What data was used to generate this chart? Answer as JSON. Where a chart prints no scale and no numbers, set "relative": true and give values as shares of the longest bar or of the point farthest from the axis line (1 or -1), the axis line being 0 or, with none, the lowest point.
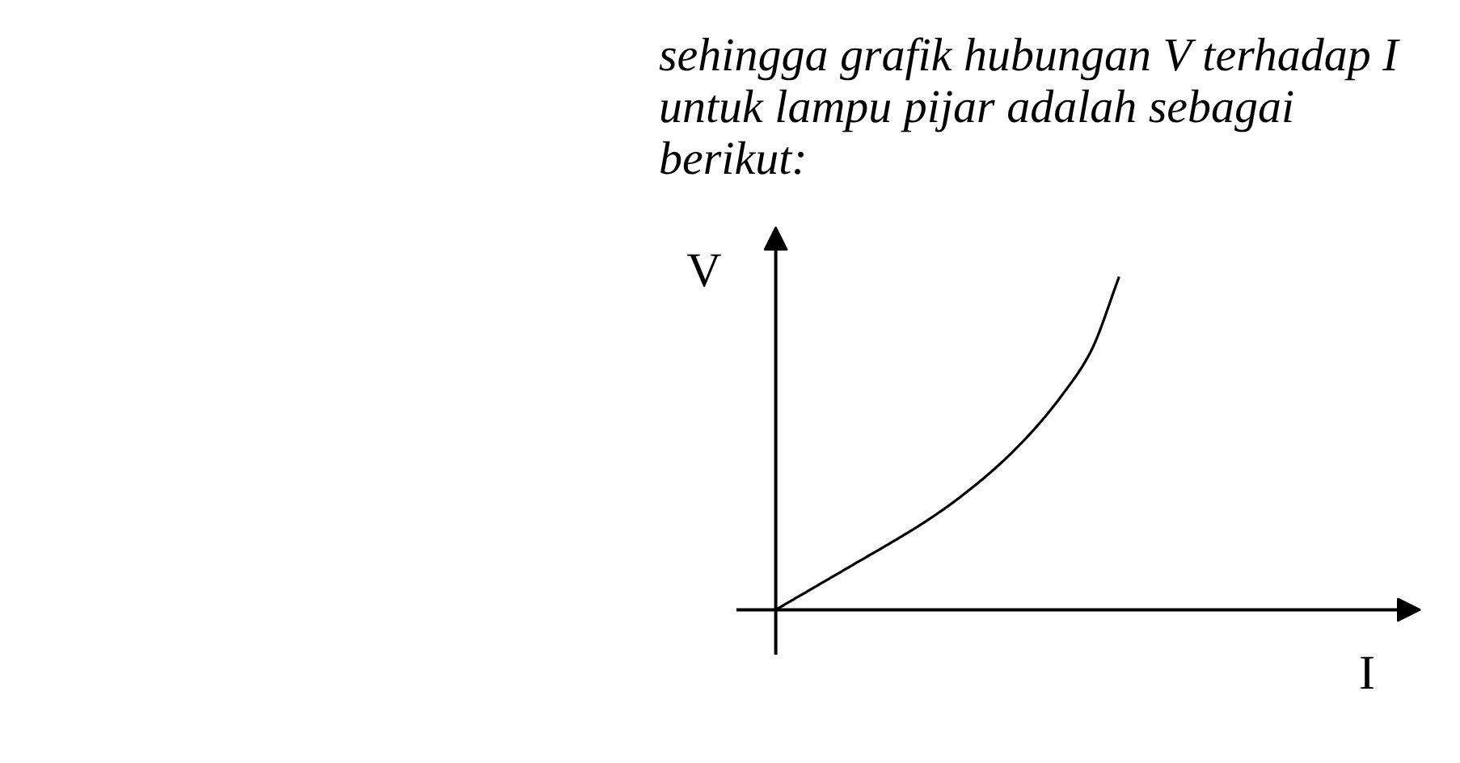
{
  "chart_data": {
    "type": "line",
    "title": "sehingga grafik hubungan V terhadap I untuk lampu pijar adalah sebagai berikut:",
    "xlabel": "I",
    "ylabel": "V",
    "relative": true,
    "categories": [
      null,
      null,
      null,
      null,
      null,
      null,
      null,
      null,
      null,
      null,
      null,
      null,
      null
    ],
    "values": [
      0,
      0.05,
      0.1,
      0.15,
      0.2,
      0.252,
      0.31,
      0.376,
      0.451,
      0.539,
      0.644,
      0.774,
      1
    ],
    "color": "#000000"
  }
}
